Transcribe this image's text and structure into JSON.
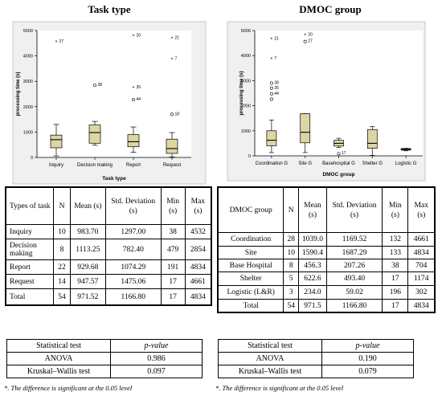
{
  "left_title": "Task type",
  "right_title": "DMOC group",
  "chart_data": [
    {
      "type": "boxplot",
      "title": "Task type",
      "xlabel": "Task type",
      "ylabel": "processing time (s)",
      "ylim": [
        0,
        5000
      ],
      "yticks": [
        0,
        1000,
        2000,
        3000,
        4000,
        5000
      ],
      "categories": [
        "Inquiry",
        "Decision making",
        "Report",
        "Request"
      ],
      "boxes": [
        {
          "whisker_low": 60,
          "q1": 380,
          "median": 700,
          "q3": 880,
          "whisker_high": 1300
        },
        {
          "whisker_low": 480,
          "q1": 560,
          "median": 980,
          "q3": 1280,
          "whisker_high": 1420
        },
        {
          "whisker_low": 200,
          "q1": 420,
          "median": 620,
          "q3": 900,
          "whisker_high": 1200
        },
        {
          "whisker_low": 20,
          "q1": 160,
          "median": 350,
          "q3": 720,
          "whisker_high": 980
        }
      ],
      "outliers": [
        {
          "category": "Inquiry",
          "value": 4560,
          "label": "27",
          "marker": "star"
        },
        {
          "category": "Decision making",
          "value": 2850,
          "label": "38",
          "marker": "circle"
        },
        {
          "category": "Report",
          "value": 4800,
          "label": "20",
          "marker": "star"
        },
        {
          "category": "Report",
          "value": 2760,
          "label": "35",
          "marker": "star"
        },
        {
          "category": "Report",
          "value": 2280,
          "label": "44",
          "marker": "circle"
        },
        {
          "category": "Request",
          "value": 4700,
          "label": "21",
          "marker": "star"
        },
        {
          "category": "Request",
          "value": 3880,
          "label": "7",
          "marker": "star"
        },
        {
          "category": "Request",
          "value": 1700,
          "label": "18",
          "marker": "circle"
        }
      ]
    },
    {
      "type": "boxplot",
      "title": "DMOC group",
      "xlabel": "DMOC group",
      "ylabel": "processing time (s)",
      "ylim": [
        0,
        5000
      ],
      "yticks": [
        0,
        1000,
        2000,
        3000,
        4000,
        5000
      ],
      "categories": [
        "Coordination G",
        "Site G",
        "Basehospital G",
        "Shelter G",
        "Logistic G"
      ],
      "boxes": [
        {
          "whisker_low": 130,
          "q1": 400,
          "median": 620,
          "q3": 1000,
          "whisker_high": 1430
        },
        {
          "whisker_low": 130,
          "q1": 520,
          "median": 940,
          "q3": 1680,
          "whisker_high": 1680
        },
        {
          "whisker_low": 330,
          "q1": 390,
          "median": 500,
          "q3": 620,
          "whisker_high": 700
        },
        {
          "whisker_low": 20,
          "q1": 300,
          "median": 500,
          "q3": 1050,
          "whisker_high": 1170
        },
        {
          "whisker_low": 200,
          "q1": 230,
          "median": 260,
          "q3": 290,
          "whisker_high": 300
        }
      ],
      "outliers": [
        {
          "category": "Coordination G",
          "value": 4660,
          "label": "21",
          "marker": "star"
        },
        {
          "category": "Coordination G",
          "value": 3880,
          "label": "7",
          "marker": "star"
        },
        {
          "category": "Coordination G",
          "value": 2900,
          "label": "38",
          "marker": "circle"
        },
        {
          "category": "Coordination G",
          "value": 2700,
          "label": "35",
          "marker": "circle"
        },
        {
          "category": "Coordination G",
          "value": 2470,
          "label": "44",
          "marker": "circle"
        },
        {
          "category": "Coordination G",
          "value": 2260,
          "label": "",
          "marker": "circle"
        },
        {
          "category": "Site G",
          "value": 4820,
          "label": "20",
          "marker": "star"
        },
        {
          "category": "Site G",
          "value": 4560,
          "label": "27",
          "marker": "circle"
        },
        {
          "category": "Basehospital G",
          "value": 90,
          "label": "17",
          "marker": "circle"
        }
      ]
    }
  ],
  "left_table": {
    "headers": [
      "Types of task",
      "N",
      "Mean (s)",
      "Std. Deviation (s)",
      "Min (s)",
      "Max (s)"
    ],
    "rows": [
      [
        "Inquiry",
        "10",
        "983.70",
        "1297.00",
        "38",
        "4532"
      ],
      [
        "Decision making",
        "8",
        "1113.25",
        "782.40",
        "479",
        "2854"
      ],
      [
        "Report",
        "22",
        "929.68",
        "1074.29",
        "191",
        "4834"
      ],
      [
        "Request",
        "14",
        "947.57",
        "1475.06",
        "17",
        "4661"
      ],
      [
        "Total",
        "54",
        "971.52",
        "1166.80",
        "17",
        "4834"
      ]
    ]
  },
  "right_table": {
    "headers": [
      "DMOC group",
      "N",
      "Mean (s)",
      "Std. Deviation (s)",
      "Min (s)",
      "Max (s)"
    ],
    "rows": [
      [
        "Coordination",
        "28",
        "1039.0",
        "1169.52",
        "132",
        "4661"
      ],
      [
        "Site",
        "10",
        "1590.4",
        "1687.29",
        "133",
        "4834"
      ],
      [
        "Base Hospital",
        "8",
        "456.3",
        "207.26",
        "38",
        "704"
      ],
      [
        "Shelter",
        "5",
        "622.6",
        "493.40",
        "17",
        "1174"
      ],
      [
        "Logistic (L&R)",
        "3",
        "234.0",
        "59.02",
        "196",
        "302"
      ],
      [
        "Total",
        "54",
        "971.5",
        "1166.80",
        "17",
        "4834"
      ]
    ]
  },
  "left_tests": {
    "header_test": "Statistical test",
    "header_p": "p-value",
    "rows": [
      [
        "ANOVA",
        "0.986"
      ],
      [
        "Kruskal–Wallis test",
        "0.097"
      ]
    ],
    "note": "*. The difference is significant at the 0.05 level"
  },
  "right_tests": {
    "header_test": "Statistical test",
    "header_p": "p-value",
    "rows": [
      [
        "ANOVA",
        "0.190"
      ],
      [
        "Kruskal–Wallis test",
        "0.079"
      ]
    ],
    "note": "*. The difference is significant at the 0.05 level"
  },
  "colors": {
    "box_fill": "#ddd6a4",
    "plot_bg": "#f0f0f0",
    "plot_border": "#c8c8c8"
  }
}
